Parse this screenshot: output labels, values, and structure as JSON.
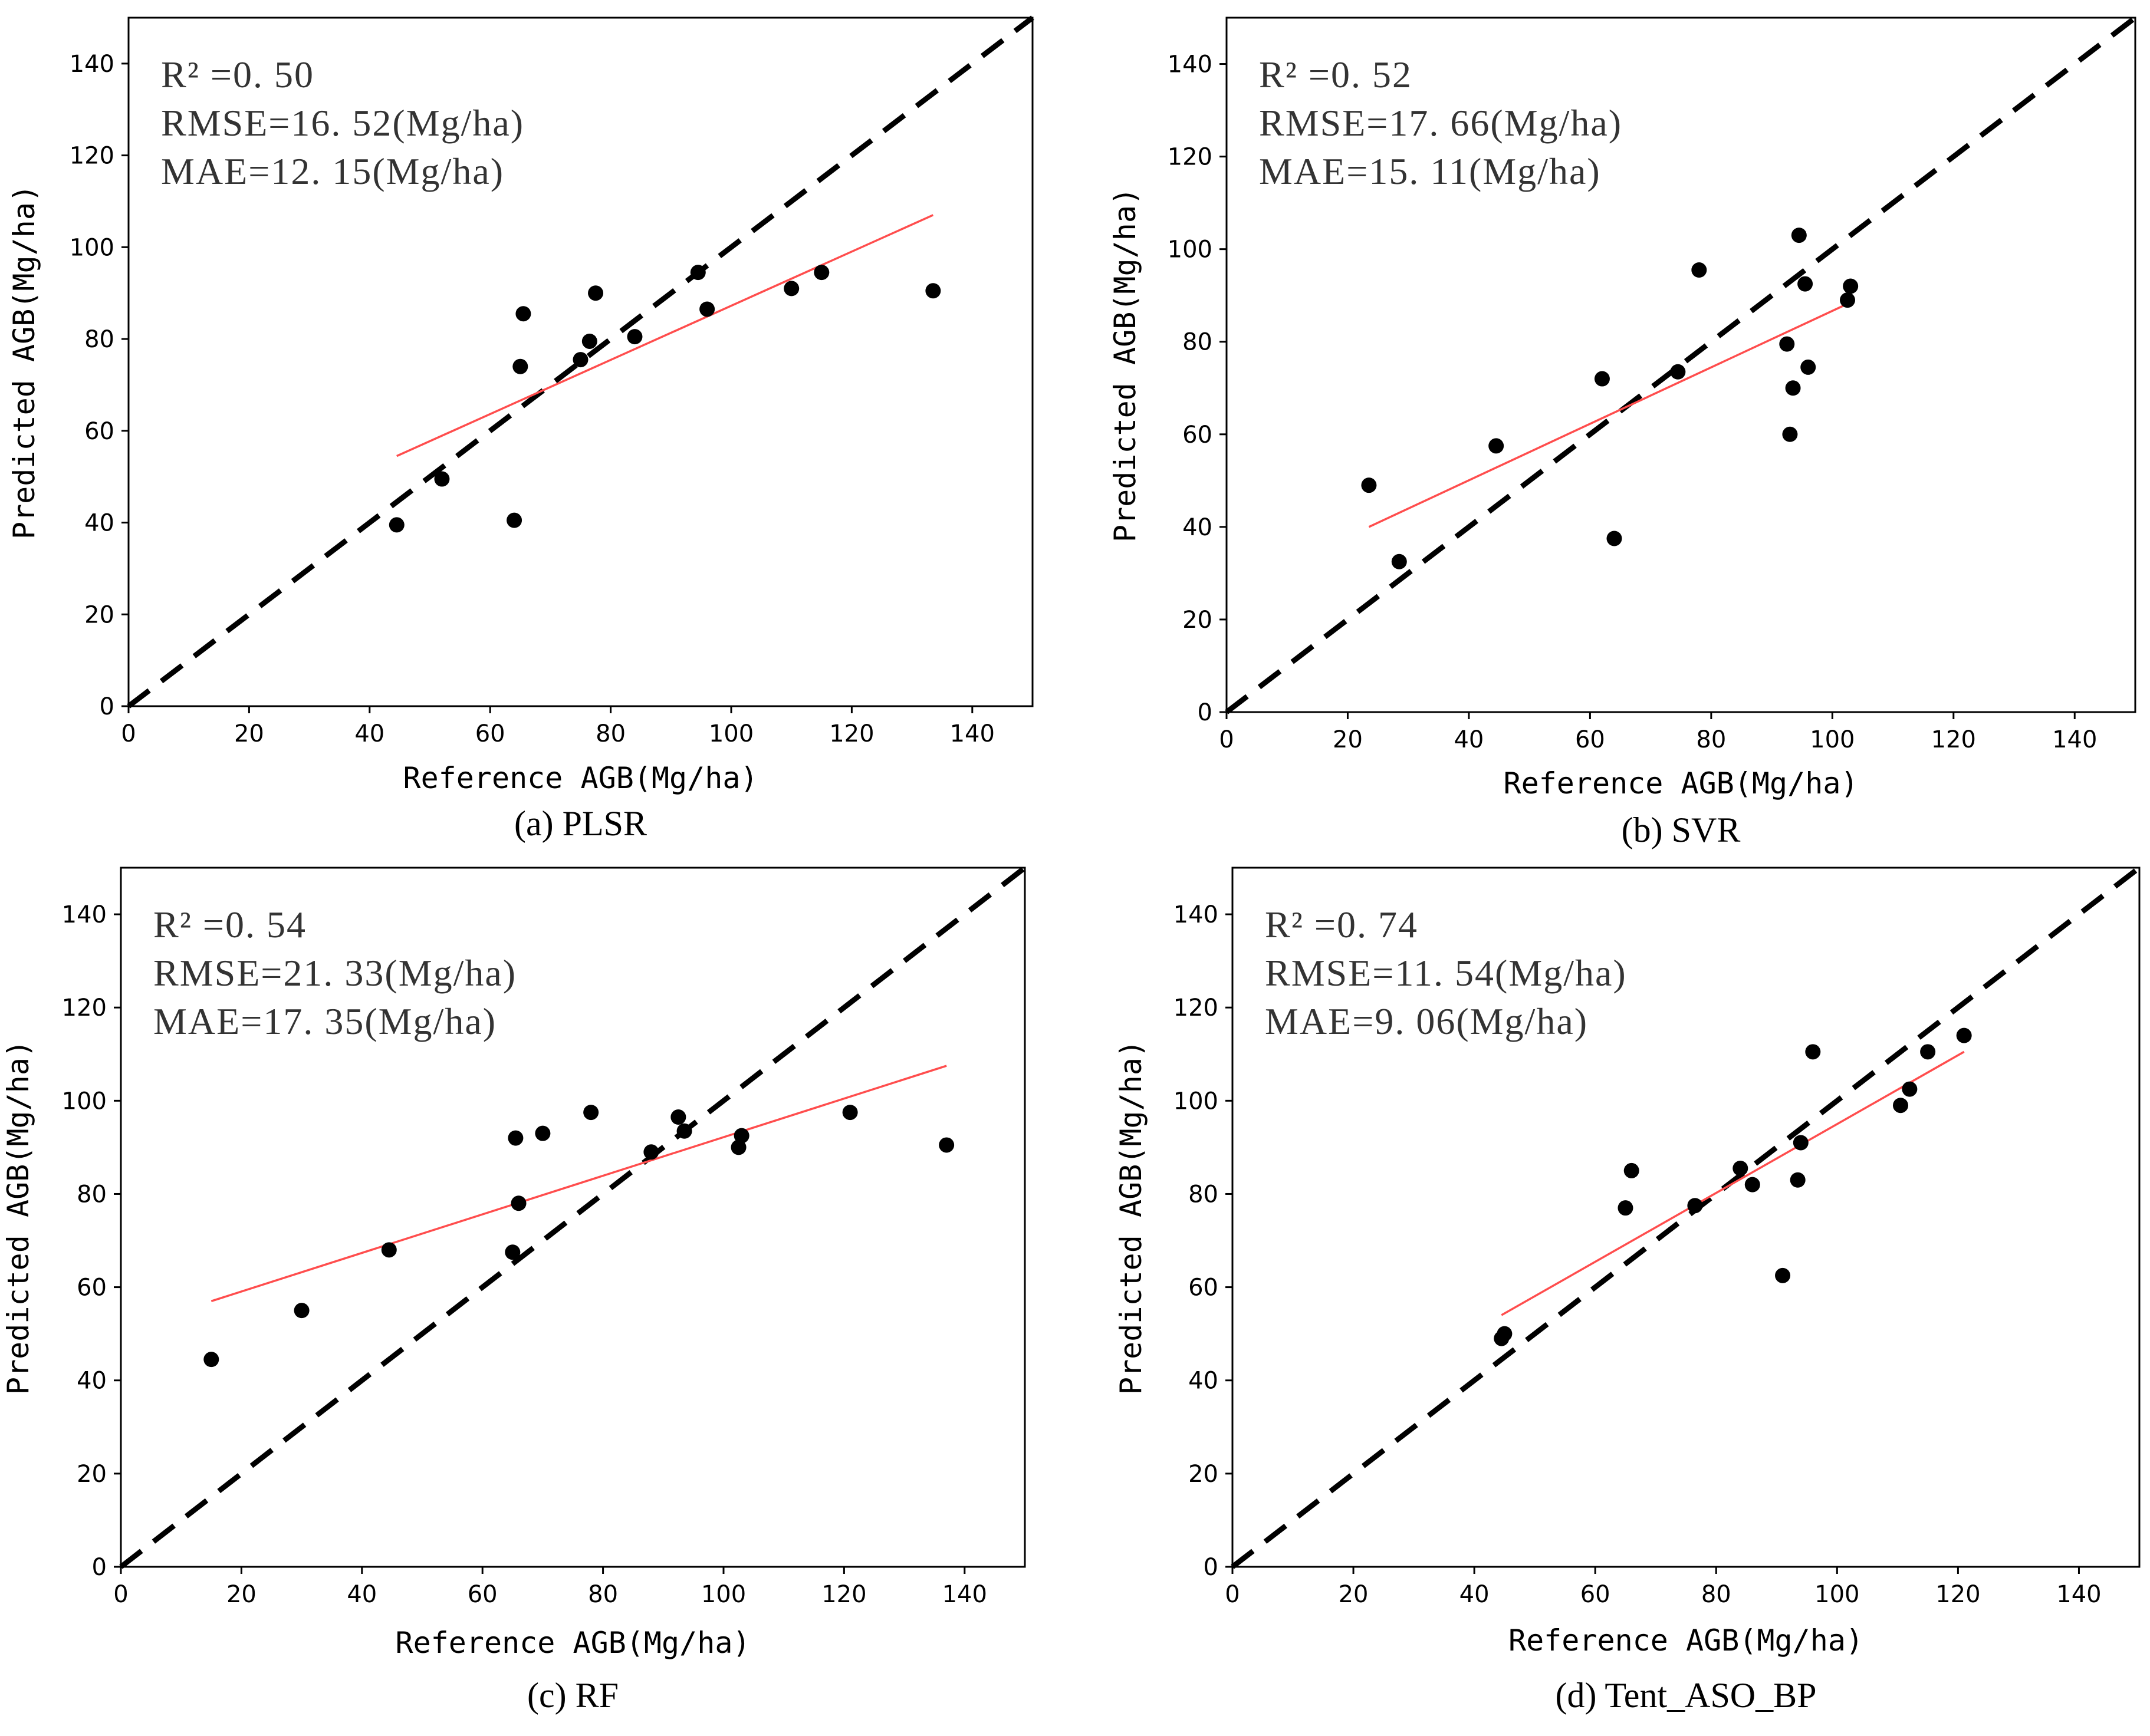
{
  "chart_data": [
    {
      "type": "scatter",
      "panel": "(a) PLSR",
      "caption": "(a) PLSR",
      "xlabel": "Reference AGB(Mg/ha)",
      "ylabel": "Predicted AGB(Mg/ha)",
      "xlim": [
        0,
        150
      ],
      "ylim": [
        0,
        150
      ],
      "ticks": [
        0,
        20,
        40,
        60,
        80,
        100,
        120,
        140
      ],
      "stats": {
        "r2": "R² =0. 50",
        "rmse": "RMSE=16. 52(Mg/ha)",
        "mae": "MAE=12. 15(Mg/ha)"
      },
      "points": [
        [
          44.5,
          39.5
        ],
        [
          52,
          49.5
        ],
        [
          64,
          40.5
        ],
        [
          65,
          74
        ],
        [
          65.5,
          85.5
        ],
        [
          75,
          75.5
        ],
        [
          76.5,
          79.5
        ],
        [
          77.5,
          90
        ],
        [
          84,
          80.5
        ],
        [
          94.5,
          94.5
        ],
        [
          96,
          86.5
        ],
        [
          110,
          91
        ],
        [
          115,
          94.5
        ],
        [
          133.5,
          90.5
        ]
      ],
      "fit_line": [
        [
          44.5,
          54.5
        ],
        [
          133.5,
          107
        ]
      ],
      "identity_line": [
        [
          0,
          0
        ],
        [
          150,
          150
        ]
      ],
      "colors": {
        "points": "#000000",
        "fit": "#ff4d4d",
        "identity": "#000000"
      }
    },
    {
      "type": "scatter",
      "panel": "(b) SVR",
      "caption": "(b) SVR",
      "xlabel": "Reference AGB(Mg/ha)",
      "ylabel": "Predicted AGB(Mg/ha)",
      "xlim": [
        0,
        150
      ],
      "ylim": [
        0,
        150
      ],
      "ticks": [
        0,
        20,
        40,
        60,
        80,
        100,
        120,
        140
      ],
      "stats": {
        "r2": "R² =0. 52",
        "rmse": "RMSE=17. 66(Mg/ha)",
        "mae": "MAE=15. 11(Mg/ha)"
      },
      "points": [
        [
          23.5,
          49
        ],
        [
          28.5,
          32.5
        ],
        [
          44.5,
          57.5
        ],
        [
          62,
          72
        ],
        [
          64,
          37.5
        ],
        [
          74.5,
          73.5
        ],
        [
          78,
          95.5
        ],
        [
          92.5,
          79.5
        ],
        [
          93,
          60
        ],
        [
          93.5,
          70
        ],
        [
          94.5,
          103
        ],
        [
          95.5,
          92.5
        ],
        [
          96,
          74.5
        ],
        [
          102.5,
          89
        ],
        [
          103,
          92
        ]
      ],
      "fit_line": [
        [
          23.5,
          40
        ],
        [
          103,
          88.5
        ]
      ],
      "identity_line": [
        [
          0,
          0
        ],
        [
          150,
          150
        ]
      ],
      "colors": {
        "points": "#000000",
        "fit": "#ff4d4d",
        "identity": "#000000"
      }
    },
    {
      "type": "scatter",
      "panel": "(c) RF",
      "caption": "(c) RF",
      "xlabel": "Reference AGB(Mg/ha)",
      "ylabel": "Predicted AGB(Mg/ha)",
      "xlim": [
        0,
        150
      ],
      "ylim": [
        0,
        150
      ],
      "ticks": [
        0,
        20,
        40,
        60,
        80,
        100,
        120,
        140
      ],
      "stats": {
        "r2": "R² =0. 54",
        "rmse": "RMSE=21. 33(Mg/ha)",
        "mae": "MAE=17. 35(Mg/ha)"
      },
      "points": [
        [
          15,
          44.5
        ],
        [
          30,
          55
        ],
        [
          44.5,
          68
        ],
        [
          65,
          67.5
        ],
        [
          65.5,
          92
        ],
        [
          66,
          78
        ],
        [
          70,
          93
        ],
        [
          78,
          97.5
        ],
        [
          88,
          89
        ],
        [
          92.5,
          96.5
        ],
        [
          93.5,
          93.5
        ],
        [
          102.5,
          90
        ],
        [
          103,
          92.5
        ],
        [
          121,
          97.5
        ],
        [
          137,
          90.5
        ]
      ],
      "fit_line": [
        [
          15,
          57
        ],
        [
          137,
          107.5
        ]
      ],
      "identity_line": [
        [
          0,
          0
        ],
        [
          150,
          150
        ]
      ],
      "colors": {
        "points": "#000000",
        "fit": "#ff4d4d",
        "identity": "#000000"
      }
    },
    {
      "type": "scatter",
      "panel": "(d) Tent_ASO_BP",
      "caption": "(d) Tent_ASO_BP",
      "xlabel": "Reference AGB(Mg/ha)",
      "ylabel": "Predicted AGB(Mg/ha)",
      "xlim": [
        0,
        150
      ],
      "ylim": [
        0,
        150
      ],
      "ticks": [
        0,
        20,
        40,
        60,
        80,
        100,
        120,
        140
      ],
      "stats": {
        "r2": "R² =0. 74",
        "rmse": "RMSE=11. 54(Mg/ha)",
        "mae": "MAE=9. 06(Mg/ha)"
      },
      "points": [
        [
          44.5,
          49
        ],
        [
          45,
          50
        ],
        [
          65,
          77
        ],
        [
          66,
          85
        ],
        [
          76.5,
          77.5
        ],
        [
          84,
          85.5
        ],
        [
          86,
          82
        ],
        [
          91,
          62.5
        ],
        [
          93.5,
          83
        ],
        [
          94,
          91
        ],
        [
          96,
          110.5
        ],
        [
          110.5,
          99
        ],
        [
          112,
          102.5
        ],
        [
          115,
          110.5
        ],
        [
          121,
          114
        ]
      ],
      "fit_line": [
        [
          44.5,
          54
        ],
        [
          121,
          110.5
        ]
      ],
      "identity_line": [
        [
          0,
          0
        ],
        [
          150,
          150
        ]
      ],
      "colors": {
        "points": "#000000",
        "fit": "#ff4d4d",
        "identity": "#000000"
      }
    }
  ]
}
